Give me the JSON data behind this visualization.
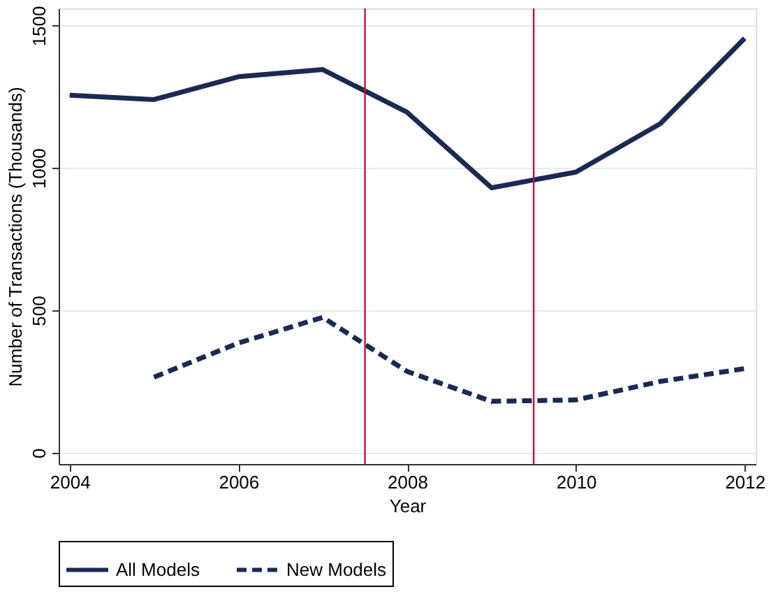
{
  "chart_data": {
    "type": "line",
    "xlabel": "Year",
    "ylabel": "Number of Transactions (Thousands)",
    "x": [
      2004,
      2005,
      2006,
      2007,
      2008,
      2009,
      2010,
      2011,
      2012
    ],
    "series": [
      {
        "name": "All Models",
        "color": "#1a2a52",
        "line_style": "solid",
        "values": [
          1255,
          1240,
          1320,
          1345,
          1195,
          930,
          985,
          1155,
          1455
        ]
      },
      {
        "name": "New Models",
        "color": "#1a2a52",
        "line_style": "dashed",
        "values": [
          null,
          265,
          385,
          475,
          285,
          180,
          185,
          250,
          295
        ]
      }
    ],
    "xlim": [
      2003.87,
      2012.13
    ],
    "xticks": [
      2004,
      2006,
      2008,
      2010,
      2012
    ],
    "ylim": [
      -40,
      1560
    ],
    "yticks": [
      0,
      500,
      1000,
      1500
    ],
    "ref_lines": [
      {
        "axis": "x",
        "value": 2007.5,
        "color": "#d0103a"
      },
      {
        "axis": "x",
        "value": 2009.5,
        "color": "#d0103a"
      }
    ],
    "grid": "y",
    "legend": "bottom",
    "marker": "none"
  }
}
